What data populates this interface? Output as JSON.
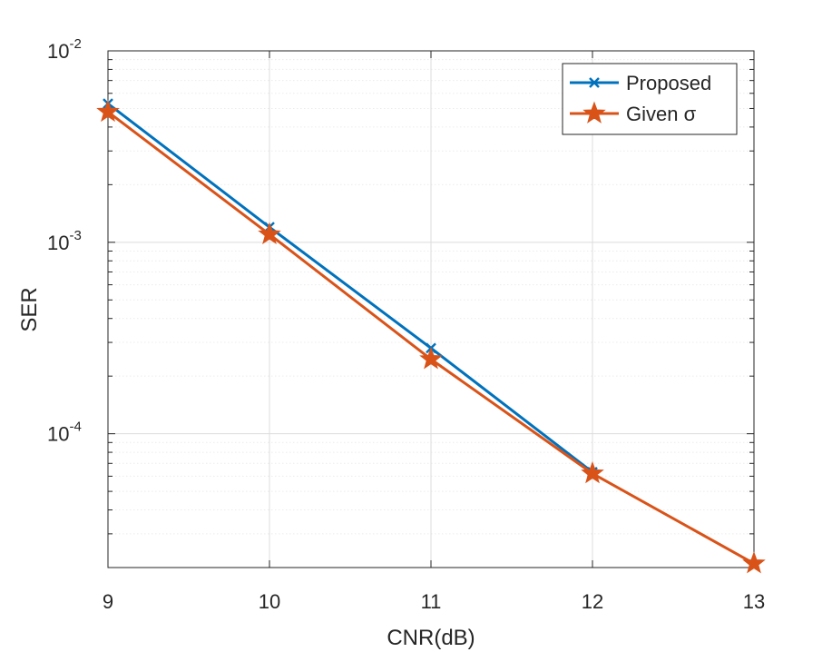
{
  "chart_data": {
    "type": "line",
    "x": [
      9,
      10,
      11,
      12,
      13
    ],
    "xlabel": "CNR(dB)",
    "ylabel": "SER",
    "xlim": [
      9,
      13
    ],
    "ylim": [
      2e-05,
      0.01
    ],
    "yscale": "log",
    "grid": true,
    "xticks": [
      "9",
      "10",
      "11",
      "12",
      "13"
    ],
    "yticks": [
      {
        "base": "10",
        "exp": "-4",
        "value": 0.0001
      },
      {
        "base": "10",
        "exp": "-3",
        "value": 0.001
      },
      {
        "base": "10",
        "exp": "-2",
        "value": 0.01
      }
    ],
    "legend": {
      "location": "top-right",
      "entries": [
        "Proposed",
        "Given σ"
      ]
    },
    "series": [
      {
        "name": "Proposed",
        "color": "#0072BD",
        "marker": "x",
        "x": [
          9,
          10,
          11,
          12
        ],
        "values": [
          0.0053,
          0.0012,
          0.00028,
          6.3e-05
        ]
      },
      {
        "name": "Given σ",
        "color": "#D95319",
        "marker": "star",
        "x": [
          9,
          10,
          11,
          12,
          13
        ],
        "values": [
          0.0048,
          0.0011,
          0.000245,
          6.2e-05,
          2.1e-05
        ]
      }
    ]
  }
}
